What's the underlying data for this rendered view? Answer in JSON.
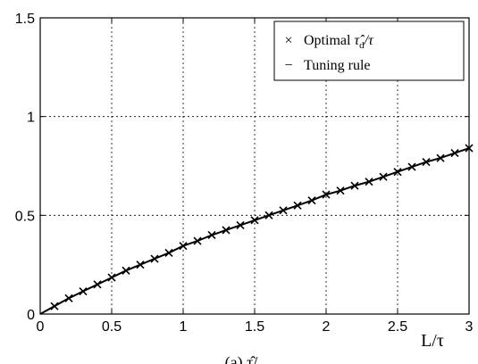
{
  "chart_data": {
    "type": "line",
    "xlabel": "L/τ",
    "ylabel": "",
    "xlim": [
      0,
      3
    ],
    "ylim": [
      0,
      1.5
    ],
    "x_ticks": [
      "0",
      "0.5",
      "1",
      "1.5",
      "2",
      "2.5",
      "3"
    ],
    "y_ticks": [
      "0",
      "0.5",
      "1",
      "1.5"
    ],
    "grid": true,
    "legend_position": "top-right",
    "series": [
      {
        "name": "Optimal τ̂d/τ",
        "marker": "x",
        "x": [
          0.1,
          0.2,
          0.3,
          0.4,
          0.5,
          0.6,
          0.7,
          0.8,
          0.9,
          1.0,
          1.1,
          1.2,
          1.3,
          1.4,
          1.5,
          1.6,
          1.7,
          1.8,
          1.9,
          2.0,
          2.1,
          2.2,
          2.3,
          2.4,
          2.5,
          2.6,
          2.7,
          2.8,
          2.9,
          3.0
        ],
        "y": [
          0.04,
          0.08,
          0.115,
          0.15,
          0.185,
          0.22,
          0.25,
          0.28,
          0.31,
          0.345,
          0.37,
          0.4,
          0.425,
          0.45,
          0.475,
          0.5,
          0.525,
          0.55,
          0.575,
          0.605,
          0.625,
          0.65,
          0.67,
          0.695,
          0.72,
          0.745,
          0.77,
          0.79,
          0.815,
          0.84
        ]
      },
      {
        "name": "Tuning rule",
        "marker": "line",
        "x": [
          0,
          0.1,
          0.2,
          0.3,
          0.4,
          0.5,
          0.6,
          0.7,
          0.8,
          0.9,
          1.0,
          1.1,
          1.2,
          1.3,
          1.4,
          1.5,
          1.6,
          1.7,
          1.8,
          1.9,
          2.0,
          2.1,
          2.2,
          2.3,
          2.4,
          2.5,
          2.6,
          2.7,
          2.8,
          2.9,
          3.0
        ],
        "y": [
          0,
          0.04,
          0.08,
          0.115,
          0.15,
          0.185,
          0.22,
          0.25,
          0.28,
          0.31,
          0.345,
          0.37,
          0.4,
          0.425,
          0.45,
          0.475,
          0.5,
          0.525,
          0.55,
          0.575,
          0.605,
          0.625,
          0.65,
          0.67,
          0.695,
          0.72,
          0.745,
          0.77,
          0.79,
          0.815,
          0.84
        ]
      }
    ],
    "legend": {
      "entry_1_symbol": "×",
      "entry_1_prefix": "Optimal",
      "entry_1_math": "τ̂",
      "entry_1_sub": "d",
      "entry_1_suffix": "/τ",
      "entry_2_symbol": "−",
      "entry_2_label": "Tuning rule"
    },
    "caption_fragment": "(a) τ̂/"
  }
}
